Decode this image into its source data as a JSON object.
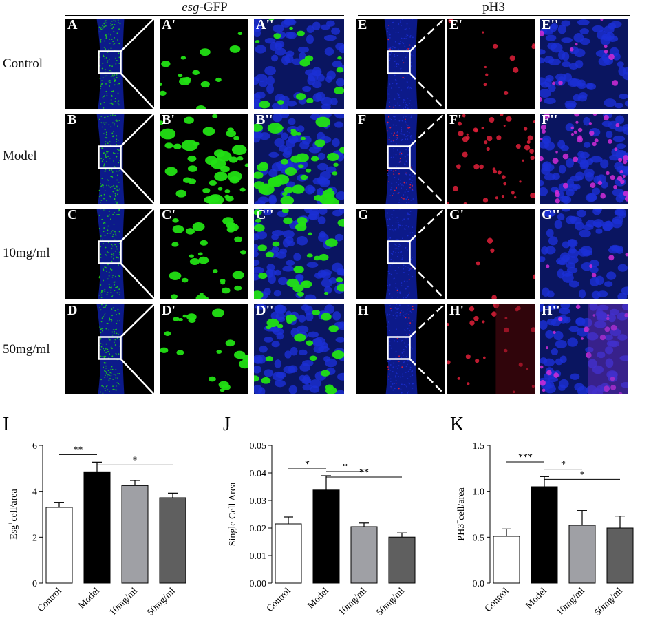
{
  "headers": {
    "left_prefix": "esg",
    "left_suffix": "-GFP",
    "right": "pH3"
  },
  "row_labels": [
    "Control",
    "Model",
    "10mg/ml",
    "50mg/ml"
  ],
  "panel_labels": [
    [
      "A",
      "A'",
      "A''",
      "E",
      "E'",
      "E''"
    ],
    [
      "B",
      "B'",
      "B''",
      "F",
      "F'",
      "F''"
    ],
    [
      "C",
      "C'",
      "C''",
      "G",
      "G'",
      "G''"
    ],
    [
      "D",
      "D'",
      "D''",
      "H",
      "H'",
      "H''"
    ]
  ],
  "colors": {
    "dapi": "#1b2fd6",
    "gfp": "#22e014",
    "ph3": "#e0203a",
    "bar_control": "#ffffff",
    "bar_model": "#000000",
    "bar_10": "#9fa0a5",
    "bar_50": "#5f5f5f"
  },
  "chart_data": [
    {
      "panel_letter": "I",
      "type": "bar",
      "categories": [
        "Control",
        "Model",
        "10mg/ml",
        "50mg/ml"
      ],
      "values": [
        3.3,
        4.85,
        4.25,
        3.72
      ],
      "errors": [
        0.22,
        0.42,
        0.22,
        0.2
      ],
      "ylabel_main": "Esg",
      "ylabel_sup": "+",
      "ylabel_rest": "cell/area",
      "ylim": [
        0,
        6
      ],
      "yticks": [
        "0",
        "2",
        "4",
        "6"
      ],
      "ytick_values": [
        0,
        2,
        4,
        6
      ],
      "significance": [
        {
          "from": 0,
          "to": 1,
          "label": "**",
          "y": 5.6
        },
        {
          "from": 1,
          "to": 3,
          "label": "*",
          "y": 5.15
        }
      ]
    },
    {
      "panel_letter": "J",
      "type": "bar",
      "categories": [
        "Control",
        "Model",
        "10mg/ml",
        "50mg/ml"
      ],
      "values": [
        0.0215,
        0.0338,
        0.0205,
        0.0167
      ],
      "errors": [
        0.0025,
        0.0052,
        0.0013,
        0.0015
      ],
      "ylabel_main": "Single Cell Area",
      "ylabel_sup": "",
      "ylabel_rest": "",
      "ylim": [
        0,
        0.05
      ],
      "yticks": [
        "0.00",
        "0.01",
        "0.02",
        "0.03",
        "0.04",
        "0.05"
      ],
      "ytick_values": [
        0,
        0.01,
        0.02,
        0.03,
        0.04,
        0.05
      ],
      "significance": [
        {
          "from": 0,
          "to": 1,
          "label": "*",
          "y": 0.0415
        },
        {
          "from": 1,
          "to": 2,
          "label": "*",
          "y": 0.0405
        },
        {
          "from": 1,
          "to": 3,
          "label": "**",
          "y": 0.0385
        }
      ]
    },
    {
      "panel_letter": "K",
      "type": "bar",
      "categories": [
        "Control",
        "Model",
        "10mg/ml",
        "50mg/ml"
      ],
      "values": [
        0.51,
        1.05,
        0.63,
        0.6
      ],
      "errors": [
        0.08,
        0.11,
        0.16,
        0.13
      ],
      "ylabel_main": "PH3",
      "ylabel_sup": "+",
      "ylabel_rest": "cell/area",
      "ylim": [
        0,
        1.5
      ],
      "yticks": [
        "0.0",
        "0.5",
        "1.0",
        "1.5"
      ],
      "ytick_values": [
        0,
        0.5,
        1.0,
        1.5
      ],
      "significance": [
        {
          "from": 0,
          "to": 1,
          "label": "***",
          "y": 1.32
        },
        {
          "from": 1,
          "to": 2,
          "label": "*",
          "y": 1.24
        },
        {
          "from": 1,
          "to": 3,
          "label": "*",
          "y": 1.13
        }
      ]
    }
  ]
}
